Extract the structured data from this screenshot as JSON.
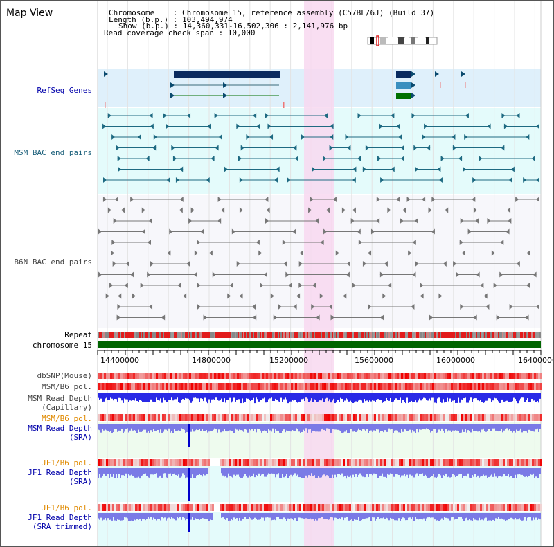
{
  "title": "Map View",
  "info": {
    "chromosome": "Chromosome    : Chromosome 15, reference assembly (C57BL/6J) (Build 37)",
    "length": "Length (b.p.) : 103,494,974",
    "show": "Show (b.p.) : 14,360,331-16,502,306 : 2,141,976 bp",
    "coverage": "Read coverage check span : 10,000"
  },
  "tracks": {
    "refseq": "RefSeq Genes",
    "msm_bac": "MSM BAC end pairs",
    "b6n_bac": "B6N BAC end pairs",
    "repeat": "Repeat",
    "chromosome": "chromosome 15",
    "dbsnp": "dbSNP(Mouse)",
    "msm_pol": "MSM/B6 pol.",
    "msm_depth_cap_1": "MSM Read Depth",
    "msm_depth_cap_2": "(Capillary)",
    "msm_pol_sra": "MSM/B6 pol.",
    "msm_depth_sra_1": "MSM Read Depth",
    "msm_depth_sra_2": "(SRA)",
    "jf1_pol": "JF1/B6 pol.",
    "jf1_depth_1": "JF1 Read Depth",
    "jf1_depth_2": "(SRA)",
    "jf1_pol_trim": "JF1/B6 pol.",
    "jf1_trim_1": "JF1 Read Depth",
    "jf1_trim_2": "(SRA trimmed)"
  },
  "axis": {
    "ticks": [
      "14400000",
      "14800000",
      "15200000",
      "15600000",
      "16000000",
      "16400000"
    ]
  },
  "colors": {
    "refseq_bg": "#dff0fb",
    "bac_bg": "#e4fbfb",
    "b6n_bg": "#f7f7fb",
    "highlight": "#f8d8f0",
    "repeat_red": "#e21c1c",
    "chromosome_green": "#006400",
    "depth_blue": "#2a2ae6",
    "depth_light": "#7a7ae6"
  }
}
